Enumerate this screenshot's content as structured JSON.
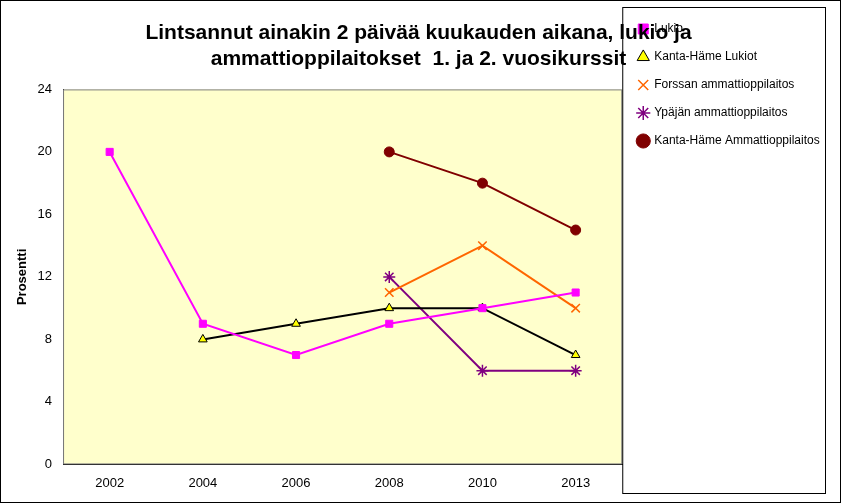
{
  "chart_data": {
    "type": "line",
    "title": [
      "Lintsannut ainakin 2 päivää kuukauden aikana, lukio ja",
      "ammattioppilaitokset  1. ja 2. vuosikurssit"
    ],
    "y_label": "Prosentti",
    "categories": [
      "2002",
      "2004",
      "2006",
      "2008",
      "2010",
      "2013"
    ],
    "series": [
      {
        "name": "Lukio",
        "color": "#ff00ff",
        "marker": "square",
        "values": [
          20,
          9,
          7,
          9,
          10,
          11
        ]
      },
      {
        "name": "Kanta-Häme Lukiot",
        "color": "#000000",
        "marker": "triangle",
        "values": [
          null,
          8,
          9,
          10,
          10,
          7
        ]
      },
      {
        "name": "Forssan ammattioppilaitos",
        "color": "#ff6600",
        "marker": "x",
        "values": [
          null,
          null,
          null,
          11,
          14,
          10
        ]
      },
      {
        "name": "Ypäjän ammattioppilaitos",
        "color": "#800080",
        "marker": "star",
        "values": [
          null,
          null,
          null,
          12,
          6,
          6
        ]
      },
      {
        "name": "Kanta-Häme Ammattioppilaitos",
        "color": "#800000",
        "marker": "circle",
        "values": [
          null,
          null,
          null,
          20,
          18,
          15
        ]
      }
    ],
    "ylim": [
      0,
      24
    ],
    "yticks": [
      0,
      4,
      8,
      12,
      16,
      20,
      24
    ],
    "grid": false,
    "legend": "right"
  }
}
